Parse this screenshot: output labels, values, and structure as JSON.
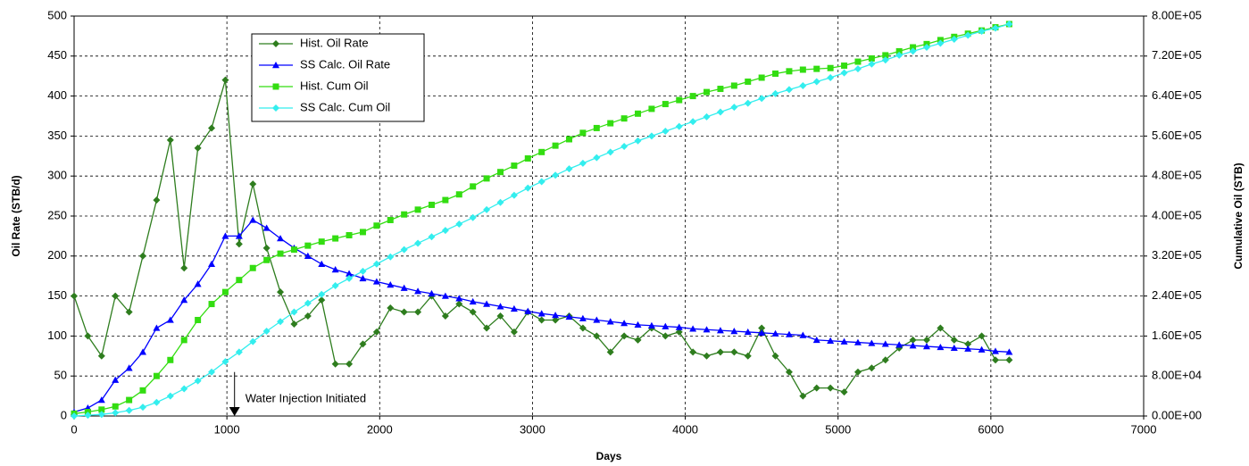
{
  "chart_data": {
    "type": "line",
    "x_label": "Days",
    "y_label": "Oil Rate (STB/d)",
    "y2_label": "Cumulative Oil (STB)",
    "xlim": [
      0,
      7000
    ],
    "xticks": [
      0,
      1000,
      2000,
      3000,
      4000,
      5000,
      6000,
      7000
    ],
    "ylim": [
      0,
      500
    ],
    "yticks": [
      0,
      50,
      100,
      150,
      200,
      250,
      300,
      350,
      400,
      450,
      500
    ],
    "y2lim": [
      0,
      800000
    ],
    "y2ticks": [
      {
        "value": 0,
        "label": "0.00E+00"
      },
      {
        "value": 80000,
        "label": "8.00E+04"
      },
      {
        "value": 160000,
        "label": "1.60E+05"
      },
      {
        "value": 240000,
        "label": "2.40E+05"
      },
      {
        "value": 320000,
        "label": "3.20E+05"
      },
      {
        "value": 400000,
        "label": "4.00E+05"
      },
      {
        "value": 480000,
        "label": "4.80E+05"
      },
      {
        "value": 560000,
        "label": "5.60E+05"
      },
      {
        "value": 640000,
        "label": "6.40E+05"
      },
      {
        "value": 720000,
        "label": "7.20E+05"
      },
      {
        "value": 800000,
        "label": "8.00E+05"
      }
    ],
    "grid": true,
    "legend": "upper left",
    "annotation": {
      "text": "Water Injection Initiated",
      "x": 1050,
      "y": 55
    },
    "x": [
      0,
      90,
      180,
      270,
      360,
      450,
      540,
      630,
      720,
      810,
      900,
      990,
      1080,
      1170,
      1260,
      1350,
      1440,
      1530,
      1620,
      1710,
      1800,
      1890,
      1980,
      2070,
      2160,
      2250,
      2340,
      2430,
      2520,
      2610,
      2700,
      2790,
      2880,
      2970,
      3060,
      3150,
      3240,
      3330,
      3420,
      3510,
      3600,
      3690,
      3780,
      3870,
      3960,
      4050,
      4140,
      4230,
      4320,
      4410,
      4500,
      4590,
      4680,
      4770,
      4860,
      4950,
      5040,
      5130,
      5220,
      5310,
      5400,
      5490,
      5580,
      5670,
      5760,
      5850,
      5940,
      6030,
      6120
    ],
    "series": [
      {
        "name": "Hist. Oil Rate",
        "color": "#2e7d1e",
        "marker": "diamond",
        "axis": "y",
        "values": [
          150,
          100,
          75,
          150,
          130,
          200,
          270,
          345,
          185,
          335,
          360,
          420,
          215,
          290,
          210,
          155,
          115,
          125,
          145,
          65,
          65,
          90,
          105,
          135,
          130,
          130,
          150,
          125,
          140,
          130,
          110,
          125,
          105,
          130,
          120,
          120,
          125,
          110,
          100,
          80,
          100,
          95,
          110,
          100,
          105,
          80,
          75,
          80,
          80,
          75,
          110,
          75,
          55,
          25,
          35,
          35,
          30,
          55,
          60,
          70,
          85,
          95,
          95,
          110,
          95,
          90,
          100,
          70,
          70
        ]
      },
      {
        "name": "SS Calc. Oil Rate",
        "color": "#0000ff",
        "marker": "triangle",
        "axis": "y",
        "values": [
          5,
          10,
          20,
          45,
          60,
          80,
          110,
          120,
          145,
          165,
          190,
          225,
          225,
          245,
          235,
          222,
          210,
          200,
          190,
          183,
          178,
          172,
          168,
          164,
          160,
          156,
          153,
          150,
          147,
          143,
          140,
          137,
          134,
          131,
          128,
          126,
          124,
          122,
          120,
          118,
          116,
          114,
          113,
          112,
          111,
          109,
          108,
          107,
          106,
          105,
          104,
          103,
          102,
          101,
          95,
          94,
          93,
          92,
          91,
          90,
          89,
          88,
          87,
          86,
          85,
          84,
          83,
          81,
          80
        ]
      },
      {
        "name": "Hist. Cum Oil",
        "color": "#33dd11",
        "marker": "square",
        "axis": "y2",
        "values": [
          4800,
          8000,
          12800,
          19200,
          32000,
          51200,
          80000,
          112000,
          152000,
          192000,
          224000,
          248000,
          272000,
          296000,
          312000,
          324800,
          332800,
          340800,
          348800,
          355200,
          361600,
          368000,
          380800,
          392000,
          403200,
          412800,
          422400,
          432000,
          443200,
          459200,
          475200,
          488000,
          500800,
          515200,
          528000,
          540800,
          553600,
          566400,
          576000,
          585600,
          595200,
          604800,
          614400,
          624000,
          632000,
          640000,
          648000,
          654400,
          660800,
          668800,
          676800,
          684800,
          689600,
          692800,
          694400,
          696000,
          700800,
          708800,
          715200,
          721600,
          729600,
          737600,
          744000,
          752000,
          758400,
          764800,
          771200,
          777600,
          784000
        ]
      },
      {
        "name": "SS Calc. Cum Oil",
        "color": "#33eeee",
        "marker": "diamond",
        "axis": "y2",
        "values": [
          0,
          1600,
          3200,
          6400,
          11200,
          17600,
          27200,
          40000,
          54400,
          70400,
          88000,
          108800,
          128000,
          148800,
          169600,
          188800,
          208000,
          225600,
          243200,
          260800,
          275200,
          289600,
          304000,
          318400,
          332800,
          345600,
          358400,
          371200,
          384000,
          396800,
          412800,
          427200,
          441600,
          456000,
          468800,
          481600,
          494400,
          505600,
          516800,
          528000,
          539200,
          550400,
          560000,
          569600,
          579200,
          588800,
          598400,
          608000,
          617600,
          625600,
          635200,
          644800,
          652800,
          660800,
          668800,
          676800,
          686400,
          694400,
          704000,
          712000,
          721600,
          729600,
          737600,
          745600,
          753600,
          761600,
          769600,
          776000,
          784000
        ]
      }
    ]
  }
}
